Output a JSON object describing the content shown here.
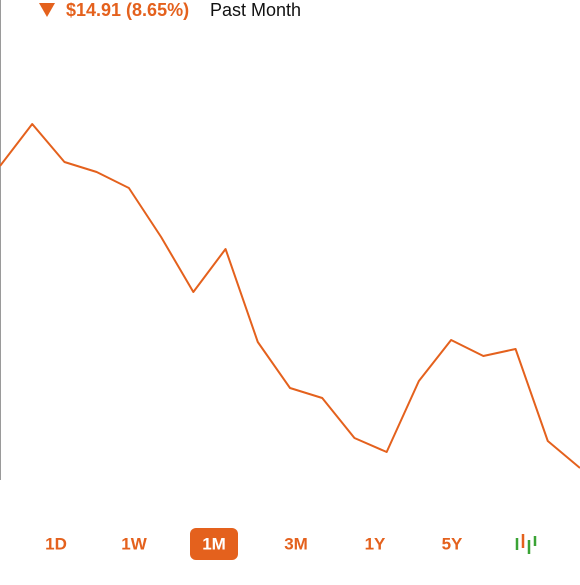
{
  "header": {
    "change": "$14.91 (8.65%)",
    "period": "Past Month"
  },
  "chart_data": {
    "type": "line",
    "categories": [
      null,
      null,
      null,
      null,
      null,
      null,
      null,
      null,
      null,
      null,
      null,
      null,
      null,
      null,
      null,
      null,
      null,
      null,
      null
    ],
    "values": [
      414,
      456,
      418,
      408,
      392,
      343,
      288,
      331,
      238,
      192,
      182,
      142,
      128,
      199,
      240,
      224,
      231,
      139,
      112
    ],
    "ylim": [
      0,
      580
    ],
    "color": "#e4611d"
  },
  "ranges": {
    "options": [
      "1D",
      "1W",
      "1M",
      "3M",
      "1Y",
      "5Y"
    ],
    "selected": 2
  }
}
